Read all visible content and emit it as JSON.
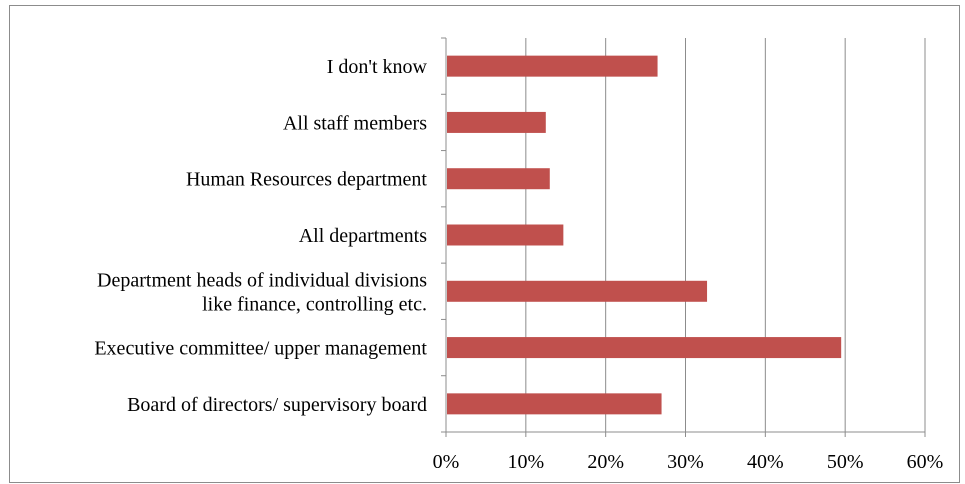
{
  "chart_data": {
    "type": "bar",
    "orientation": "horizontal",
    "categories": [
      "I don't know",
      "All staff members",
      "Human Resources department",
      "All departments",
      [
        "Department heads of individual divisions",
        "like finance, controlling etc."
      ],
      "Executive committee/ upper management",
      "Board of directors/ supervisory board"
    ],
    "values": [
      26.5,
      12.5,
      13,
      14.7,
      32.7,
      49.5,
      27
    ],
    "xlim": [
      0,
      60
    ],
    "x_ticks": [
      "0%",
      "10%",
      "20%",
      "30%",
      "40%",
      "50%",
      "60%"
    ],
    "bar_color": "#c0504d",
    "grid": true,
    "legend": "none"
  }
}
